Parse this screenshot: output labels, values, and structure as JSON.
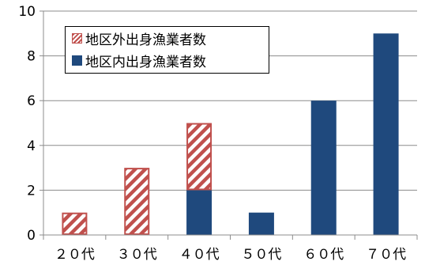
{
  "chart_data": {
    "type": "bar",
    "stacked": true,
    "categories": [
      "２０代",
      "３０代",
      "４０代",
      "５０代",
      "６０代",
      "７０代"
    ],
    "series": [
      {
        "name": "地区内出身漁業者数",
        "values": [
          0,
          0,
          2,
          1,
          6,
          9
        ],
        "color": "#1f497d",
        "pattern": "solid"
      },
      {
        "name": "地区外出身漁業者数",
        "values": [
          1,
          3,
          3,
          0,
          0,
          0
        ],
        "color": "#c0504d",
        "pattern": "diagonal-hatch"
      }
    ],
    "yticks": [
      "0",
      "2",
      "4",
      "6",
      "8",
      "10"
    ],
    "ylim": [
      0,
      10
    ],
    "grid": "horizontal",
    "legend": "top-left",
    "legend_order": [
      "地区外出身漁業者数",
      "地区内出身漁業者数"
    ]
  }
}
